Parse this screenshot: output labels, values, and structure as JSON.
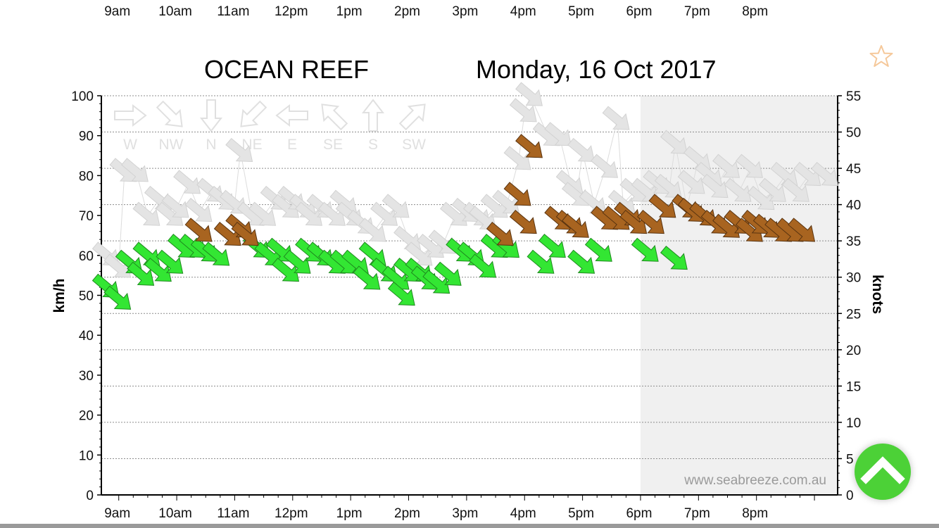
{
  "top_axis": {
    "labels": [
      "9am",
      "10am",
      "11am",
      "12pm",
      "1pm",
      "2pm",
      "3pm",
      "4pm",
      "5pm",
      "6pm",
      "7pm",
      "8pm"
    ]
  },
  "header": {
    "location": "OCEAN REEF",
    "date": "Monday, 16 Oct 2017"
  },
  "colors": {
    "calm": "#33e633",
    "strong": "#a86420",
    "forecast": "#e4e4e4",
    "night_shade": "#f0f0f0",
    "star": "#f5c89a",
    "scroll_button": "#4cd137"
  },
  "icons": {
    "favorite": "star-outline-icon",
    "scroll_top": "chevron-up-icon"
  },
  "chart_data": {
    "type": "scatter",
    "ylabel_left": "km/h",
    "ylabel_right": "knots",
    "ylim_left": [
      0,
      100
    ],
    "ylim_right": [
      0,
      55
    ],
    "yticks_left": [
      0,
      10,
      20,
      30,
      40,
      50,
      60,
      70,
      80,
      90,
      100
    ],
    "yticks_right": [
      0,
      5,
      10,
      15,
      20,
      25,
      30,
      35,
      40,
      45,
      50,
      55
    ],
    "x_ticks": [
      "9am",
      "10am",
      "11am",
      "12pm",
      "1pm",
      "2pm",
      "3pm",
      "4pm",
      "5pm",
      "6pm",
      "7pm",
      "8pm"
    ],
    "x_tick_hours": [
      9,
      10,
      11,
      12,
      13,
      14,
      15,
      16,
      17,
      18,
      19,
      20
    ],
    "xlim_hours": [
      8.7,
      21.4
    ],
    "night_from_hour": 18.0,
    "grid": "horizontal-dotted",
    "watermark": "www.seabreeze.com.au",
    "direction_legend": [
      "W",
      "NW",
      "N",
      "NE",
      "E",
      "SE",
      "S",
      "SW"
    ],
    "series": [
      {
        "kind": "observed-calm",
        "points": [
          {
            "x": 8.8,
            "y": 52
          },
          {
            "x": 9.0,
            "y": 49
          },
          {
            "x": 9.2,
            "y": 58
          },
          {
            "x": 9.4,
            "y": 55
          },
          {
            "x": 9.5,
            "y": 60
          },
          {
            "x": 9.7,
            "y": 56
          },
          {
            "x": 9.9,
            "y": 58
          },
          {
            "x": 10.1,
            "y": 62
          },
          {
            "x": 10.3,
            "y": 62
          },
          {
            "x": 10.5,
            "y": 61
          },
          {
            "x": 10.7,
            "y": 60
          },
          {
            "x": 11.4,
            "y": 62
          },
          {
            "x": 11.6,
            "y": 60
          },
          {
            "x": 11.8,
            "y": 61
          },
          {
            "x": 11.9,
            "y": 56
          },
          {
            "x": 12.1,
            "y": 58
          },
          {
            "x": 12.3,
            "y": 61
          },
          {
            "x": 12.5,
            "y": 60
          },
          {
            "x": 12.7,
            "y": 58
          },
          {
            "x": 12.9,
            "y": 58
          },
          {
            "x": 13.1,
            "y": 58
          },
          {
            "x": 13.3,
            "y": 54
          },
          {
            "x": 13.4,
            "y": 60
          },
          {
            "x": 13.6,
            "y": 56
          },
          {
            "x": 13.8,
            "y": 54
          },
          {
            "x": 13.9,
            "y": 50
          },
          {
            "x": 14.0,
            "y": 56
          },
          {
            "x": 14.2,
            "y": 56
          },
          {
            "x": 14.3,
            "y": 54
          },
          {
            "x": 14.5,
            "y": 53
          },
          {
            "x": 14.7,
            "y": 55
          },
          {
            "x": 14.9,
            "y": 61
          },
          {
            "x": 15.1,
            "y": 60
          },
          {
            "x": 15.3,
            "y": 57
          },
          {
            "x": 15.5,
            "y": 62
          },
          {
            "x": 15.7,
            "y": 62
          },
          {
            "x": 16.3,
            "y": 58
          },
          {
            "x": 16.5,
            "y": 62
          },
          {
            "x": 17.0,
            "y": 58
          },
          {
            "x": 17.3,
            "y": 61
          },
          {
            "x": 18.1,
            "y": 61
          },
          {
            "x": 18.6,
            "y": 59
          }
        ]
      },
      {
        "kind": "observed-strong",
        "points": [
          {
            "x": 10.4,
            "y": 66
          },
          {
            "x": 10.9,
            "y": 65
          },
          {
            "x": 11.1,
            "y": 67
          },
          {
            "x": 11.2,
            "y": 65
          },
          {
            "x": 15.6,
            "y": 65
          },
          {
            "x": 15.9,
            "y": 75
          },
          {
            "x": 16.0,
            "y": 68
          },
          {
            "x": 16.1,
            "y": 87
          },
          {
            "x": 16.6,
            "y": 69
          },
          {
            "x": 16.8,
            "y": 68
          },
          {
            "x": 16.9,
            "y": 67
          },
          {
            "x": 17.4,
            "y": 69
          },
          {
            "x": 17.6,
            "y": 69
          },
          {
            "x": 17.8,
            "y": 70
          },
          {
            "x": 17.9,
            "y": 68
          },
          {
            "x": 18.2,
            "y": 68
          },
          {
            "x": 18.4,
            "y": 72
          },
          {
            "x": 18.8,
            "y": 72
          },
          {
            "x": 18.9,
            "y": 71
          },
          {
            "x": 19.1,
            "y": 70
          },
          {
            "x": 19.3,
            "y": 68
          },
          {
            "x": 19.5,
            "y": 67
          },
          {
            "x": 19.7,
            "y": 68
          },
          {
            "x": 19.9,
            "y": 66
          },
          {
            "x": 20.0,
            "y": 68
          },
          {
            "x": 20.2,
            "y": 67
          },
          {
            "x": 20.4,
            "y": 66
          },
          {
            "x": 20.6,
            "y": 66
          },
          {
            "x": 20.8,
            "y": 66
          }
        ]
      },
      {
        "kind": "forecast",
        "points": [
          {
            "x": 8.8,
            "y": 60
          },
          {
            "x": 9.0,
            "y": 57
          },
          {
            "x": 9.1,
            "y": 81
          },
          {
            "x": 9.3,
            "y": 81
          },
          {
            "x": 9.5,
            "y": 70
          },
          {
            "x": 9.7,
            "y": 74
          },
          {
            "x": 9.9,
            "y": 70
          },
          {
            "x": 10.0,
            "y": 72
          },
          {
            "x": 10.2,
            "y": 78
          },
          {
            "x": 10.4,
            "y": 71
          },
          {
            "x": 10.6,
            "y": 76
          },
          {
            "x": 10.8,
            "y": 74
          },
          {
            "x": 11.0,
            "y": 73
          },
          {
            "x": 11.1,
            "y": 86
          },
          {
            "x": 11.3,
            "y": 70
          },
          {
            "x": 11.5,
            "y": 70
          },
          {
            "x": 11.7,
            "y": 74
          },
          {
            "x": 11.9,
            "y": 72
          },
          {
            "x": 12.0,
            "y": 74
          },
          {
            "x": 12.2,
            "y": 72
          },
          {
            "x": 12.3,
            "y": 70
          },
          {
            "x": 12.5,
            "y": 72
          },
          {
            "x": 12.7,
            "y": 70
          },
          {
            "x": 12.9,
            "y": 73
          },
          {
            "x": 13.0,
            "y": 70
          },
          {
            "x": 13.2,
            "y": 68
          },
          {
            "x": 13.4,
            "y": 66
          },
          {
            "x": 13.6,
            "y": 70
          },
          {
            "x": 13.8,
            "y": 72
          },
          {
            "x": 14.0,
            "y": 64
          },
          {
            "x": 14.2,
            "y": 60
          },
          {
            "x": 14.4,
            "y": 62
          },
          {
            "x": 14.6,
            "y": 63
          },
          {
            "x": 14.8,
            "y": 70
          },
          {
            "x": 15.0,
            "y": 71
          },
          {
            "x": 15.2,
            "y": 70
          },
          {
            "x": 15.3,
            "y": 69
          },
          {
            "x": 15.5,
            "y": 72
          },
          {
            "x": 15.7,
            "y": 73
          },
          {
            "x": 15.9,
            "y": 84
          },
          {
            "x": 16.0,
            "y": 96
          },
          {
            "x": 16.1,
            "y": 100
          },
          {
            "x": 16.4,
            "y": 90
          },
          {
            "x": 16.6,
            "y": 90
          },
          {
            "x": 16.8,
            "y": 78
          },
          {
            "x": 16.9,
            "y": 75
          },
          {
            "x": 17.0,
            "y": 86
          },
          {
            "x": 17.2,
            "y": 73
          },
          {
            "x": 17.4,
            "y": 82
          },
          {
            "x": 17.6,
            "y": 94
          },
          {
            "x": 17.7,
            "y": 73
          },
          {
            "x": 17.9,
            "y": 76
          },
          {
            "x": 18.1,
            "y": 76
          },
          {
            "x": 18.3,
            "y": 78
          },
          {
            "x": 18.5,
            "y": 77
          },
          {
            "x": 18.6,
            "y": 88
          },
          {
            "x": 18.8,
            "y": 72
          },
          {
            "x": 18.9,
            "y": 78
          },
          {
            "x": 19.0,
            "y": 84
          },
          {
            "x": 19.2,
            "y": 80
          },
          {
            "x": 19.3,
            "y": 77
          },
          {
            "x": 19.5,
            "y": 82
          },
          {
            "x": 19.7,
            "y": 76
          },
          {
            "x": 19.9,
            "y": 82
          },
          {
            "x": 20.1,
            "y": 74
          },
          {
            "x": 20.3,
            "y": 76
          },
          {
            "x": 20.5,
            "y": 80
          },
          {
            "x": 20.7,
            "y": 76
          },
          {
            "x": 20.9,
            "y": 80
          },
          {
            "x": 21.2,
            "y": 80
          }
        ]
      }
    ]
  }
}
